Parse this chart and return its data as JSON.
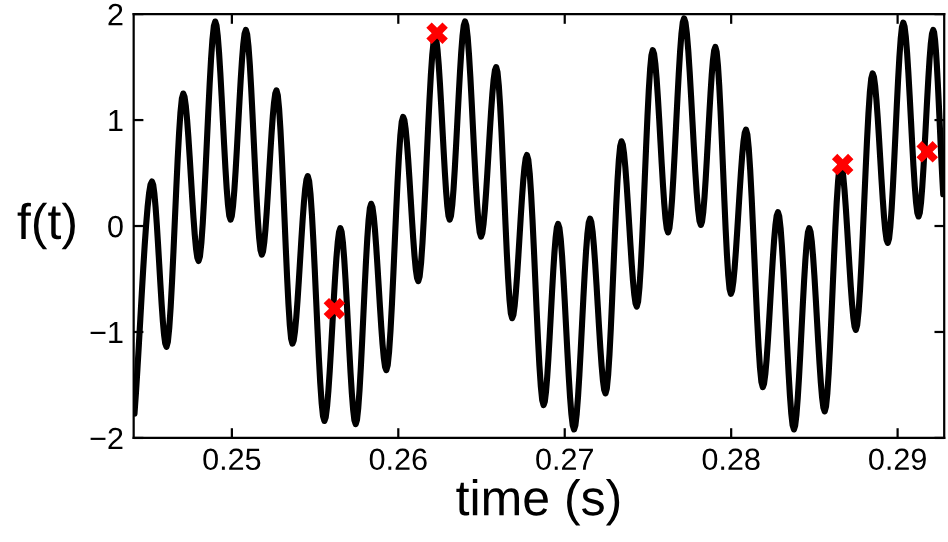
{
  "chart_data": {
    "type": "line",
    "xlabel": "time (s)",
    "ylabel": "f(t)",
    "xlim": [
      0.2441,
      0.2928
    ],
    "ylim": [
      -2,
      2
    ],
    "xticks": [
      0.25,
      0.26,
      0.27,
      0.28,
      0.29
    ],
    "yticks": [
      {
        "value": -2,
        "label": "−2"
      },
      {
        "value": -1,
        "label": "−1"
      },
      0,
      1,
      2
    ],
    "grid": false,
    "legend": false,
    "series": [
      {
        "color": "#000000",
        "marker": "none",
        "line_style": "solid",
        "x": [
          0.24415,
          0.2452,
          0.24607,
          0.24708,
          0.248,
          0.249,
          0.24992,
          0.25084,
          0.2518,
          0.25268,
          0.25364,
          0.25456,
          0.25556,
          0.25652,
          0.25744,
          0.25837,
          0.25928,
          0.26029,
          0.2612,
          0.26221,
          0.26309,
          0.26401,
          0.26497,
          0.26588,
          0.26684,
          0.26773,
          0.26873,
          0.2696,
          0.27056,
          0.27152,
          0.27245,
          0.27341,
          0.27433,
          0.27529,
          0.27621,
          0.27717,
          0.27818,
          0.27905,
          0.27998,
          0.28089,
          0.2819,
          0.28281,
          0.28377,
          0.28469,
          0.28562,
          0.28658,
          0.28749,
          0.2885,
          0.28941,
          0.29034,
          0.29126,
          0.29214,
          0.29274
        ],
        "values": [
          -1.77,
          0.42,
          -1.14,
          1.25,
          -0.33,
          1.93,
          0.06,
          1.85,
          -0.27,
          1.28,
          -1.11,
          0.47,
          -1.84,
          -0.02,
          -1.87,
          0.21,
          -1.36,
          1.03,
          -0.52,
          1.79,
          0.06,
          1.93,
          -0.1,
          1.5,
          -0.87,
          0.67,
          -1.69,
          0.02,
          -1.92,
          0.07,
          -1.58,
          0.8,
          -0.76,
          1.66,
          -0.06,
          1.96,
          0.01,
          1.69,
          -0.64,
          0.91,
          -1.52,
          0.13,
          -1.92,
          -0.02,
          -1.75,
          0.59,
          -0.98,
          1.44,
          -0.16,
          1.92,
          0.09,
          1.85,
          0.3
        ]
      },
      {
        "type": "scatter",
        "color": "#ff0000",
        "marker": "cross",
        "x": [
          0.25616,
          0.26233,
          0.2867,
          0.29178
        ],
        "values": [
          -0.78,
          1.82,
          0.58,
          0.7
        ]
      }
    ]
  }
}
